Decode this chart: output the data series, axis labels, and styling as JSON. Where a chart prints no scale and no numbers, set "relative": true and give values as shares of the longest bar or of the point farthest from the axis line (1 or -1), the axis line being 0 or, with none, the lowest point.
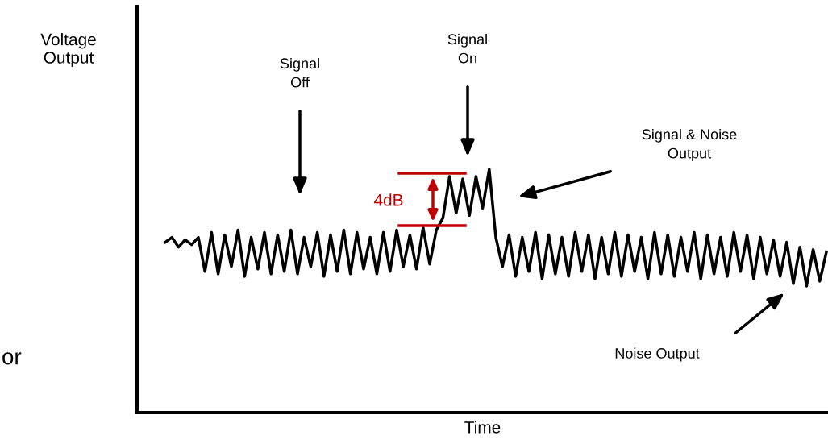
{
  "chart_data": {
    "type": "line",
    "relative": true,
    "xlabel": "Time",
    "categories": [
      null,
      null,
      null,
      null,
      null,
      null,
      null,
      null,
      null,
      null,
      null,
      null,
      null,
      null,
      null,
      null,
      null,
      null,
      null,
      null,
      null,
      null,
      null,
      null,
      null,
      null,
      null,
      null,
      null,
      null,
      null,
      null,
      null,
      null,
      null,
      null,
      null,
      null,
      null,
      null,
      null,
      null,
      null,
      null,
      null,
      null,
      null,
      null,
      null,
      null,
      null,
      null,
      null,
      null,
      null,
      null,
      null,
      null,
      null,
      null,
      null,
      null,
      null,
      null,
      null,
      null,
      null,
      null,
      null,
      null,
      null,
      null,
      null,
      null,
      null,
      null,
      null,
      null,
      null,
      null,
      null,
      null,
      null,
      null,
      null,
      null,
      null,
      null,
      null,
      null,
      null,
      null,
      null,
      null,
      null,
      null,
      null,
      null,
      null,
      null,
      null
    ],
    "series": [
      {
        "color": "#000000",
        "values": [
          0.7,
          0.72,
          0.68,
          0.71,
          0.69,
          0.72,
          0.58,
          0.74,
          0.57,
          0.73,
          0.6,
          0.75,
          0.56,
          0.72,
          0.59,
          0.74,
          0.57,
          0.73,
          0.58,
          0.75,
          0.57,
          0.72,
          0.6,
          0.74,
          0.56,
          0.73,
          0.58,
          0.75,
          0.57,
          0.74,
          0.59,
          0.72,
          0.57,
          0.74,
          0.58,
          0.75,
          0.6,
          0.73,
          0.59,
          0.76,
          0.61,
          0.75,
          0.8,
          0.97,
          0.82,
          0.96,
          0.81,
          0.97,
          0.84,
          1.0,
          0.72,
          0.6,
          0.73,
          0.56,
          0.72,
          0.58,
          0.74,
          0.55,
          0.73,
          0.57,
          0.72,
          0.56,
          0.74,
          0.58,
          0.73,
          0.55,
          0.72,
          0.57,
          0.74,
          0.56,
          0.73,
          0.58,
          0.72,
          0.55,
          0.74,
          0.57,
          0.73,
          0.56,
          0.72,
          0.58,
          0.74,
          0.55,
          0.73,
          0.57,
          0.72,
          0.56,
          0.74,
          0.58,
          0.73,
          0.55,
          0.72,
          0.57,
          0.71,
          0.56,
          0.7,
          0.53,
          0.68,
          0.52,
          0.67,
          0.54,
          0.66
        ]
      }
    ],
    "annotations": [
      "Signal\nOff",
      "Signal\nOn",
      "Signal & Noise\nOutput",
      "Noise Output",
      "4dB",
      "or",
      "Voltage\nOutput"
    ],
    "grid": false,
    "legend": false
  }
}
